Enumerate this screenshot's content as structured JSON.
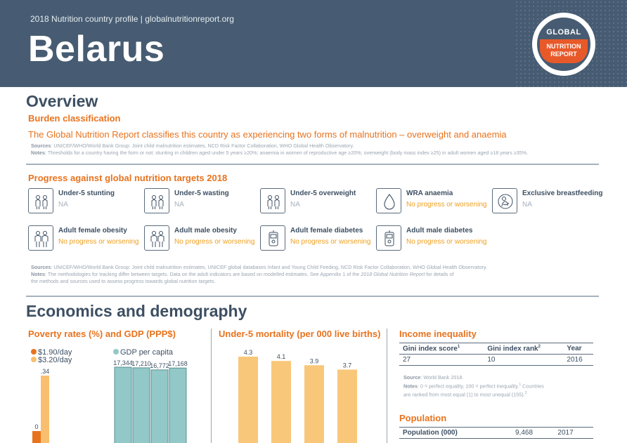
{
  "header": {
    "subtitle": "2018 Nutrition country profile  |  globalnutritionreport.org",
    "country": "Belarus",
    "logo": {
      "line1": "GLOBAL",
      "line2": "NUTRITION",
      "line3": "REPORT"
    }
  },
  "overview": {
    "title": "Overview",
    "burden_heading": "Burden classification",
    "classification": "The Global Nutrition Report classifies this country as experiencing two forms of malnutrition – overweight and anaemia",
    "sources_label": "Sources",
    "sources_text": ": UNICEF/WHO/World Bank Group: Joint child malnutrition estimates, NCD Risk Factor Collaboration, WHO Global Health Observatory.",
    "notes_label": "Notes",
    "notes_text": ": Thresholds for a country having the form or not: stunting in children aged under 5 years ≥20%; anaemia in women of reproductive age ≥20%; overweight (body mass index ≥25) in adult women aged ≥18 years ≥35%."
  },
  "progress": {
    "heading": "Progress against global nutrition targets 2018",
    "targets": [
      {
        "label": "Under-5 stunting",
        "status": "NA",
        "icon": "children-icon"
      },
      {
        "label": "Under-5 wasting",
        "status": "NA",
        "icon": "children-icon"
      },
      {
        "label": "Under-5 overweight",
        "status": "NA",
        "icon": "children-icon"
      },
      {
        "label": "WRA anaemia",
        "status": "No progress or worsening",
        "icon": "blood-drop-icon"
      },
      {
        "label": "Exclusive breastfeeding",
        "status": "NA",
        "icon": "breastfeeding-icon"
      },
      {
        "label": "Adult female obesity",
        "status": "No progress or worsening",
        "icon": "adults-icon"
      },
      {
        "label": "Adult male obesity",
        "status": "No progress or worsening",
        "icon": "adults-icon"
      },
      {
        "label": "Adult female diabetes",
        "status": "No progress or worsening",
        "icon": "glucose-meter-icon"
      },
      {
        "label": "Adult male diabetes",
        "status": "No progress or worsening",
        "icon": "glucose-meter-icon"
      }
    ],
    "sources_label": "Sources",
    "sources_text": ": UNICEF/WHO/World Bank Group: Joint child malnutrition estimates, UNICEF global databases Infant and Young Child Feeding, NCD Risk Factor Collaboration, WHO Global Health Observatory.",
    "notes_label": "Notes",
    "notes_text_1": ": The methodologies for tracking differ between targets. Data on the adult indicators are based on modelled estimates. See Appendix 1 of the ",
    "notes_italic": "2018 Global Nutrition Report",
    "notes_text_2": " for details of",
    "notes_text_3": "the methods and sources used to assess progress towards global nutrition targets."
  },
  "economics": {
    "title": "Economics and demography",
    "poverty_heading": "Poverty rates (%) and GDP (PPP$)",
    "mortality_heading": "Under-5 mortality (per 000 live births)",
    "income_heading": "Income inequality",
    "population_heading": "Population"
  },
  "chart_data": [
    {
      "type": "bar",
      "series": [
        {
          "name": "$1.90/day",
          "values": [
            0.0
          ],
          "color": "#e8731e"
        },
        {
          "name": "$3.20/day",
          "values": [
            0.34
          ],
          "color": "#f9bf6e"
        }
      ],
      "value_labels": [
        "0",
        ".34"
      ]
    },
    {
      "type": "bar",
      "series": [
        {
          "name": "GDP per capita",
          "values": [
            17344,
            17210,
            16772,
            17168
          ],
          "color": "#93c8c9"
        }
      ],
      "value_labels": [
        "17,344",
        "17,210",
        "16,772",
        "17,168"
      ]
    },
    {
      "type": "bar",
      "series": [
        {
          "name": "Under-5 mortality",
          "values": [
            4.3,
            4.1,
            3.9,
            3.7
          ],
          "color": "#f9c77a"
        }
      ],
      "value_labels": [
        "4.3",
        "4.1",
        "3.9",
        "3.7"
      ]
    }
  ],
  "income": {
    "headers": [
      "Gini index score",
      "Gini index rank",
      "Year"
    ],
    "header_sups": [
      "1",
      "2",
      ""
    ],
    "values": [
      "27",
      "10",
      "2016"
    ],
    "source_label": "Source",
    "source_text": ": World Bank 2018.",
    "notes_label": "Notes",
    "notes_text": ": 0 = perfect equality, 100 = perfect inequality.",
    "notes_sup1": "1",
    "notes_text2": " Countries",
    "notes_text3": "are ranked from most equal (1) to most unequal (155).",
    "notes_sup2": "2"
  },
  "population": {
    "label": "Population (000)",
    "value": "9,468",
    "year": "2017"
  }
}
